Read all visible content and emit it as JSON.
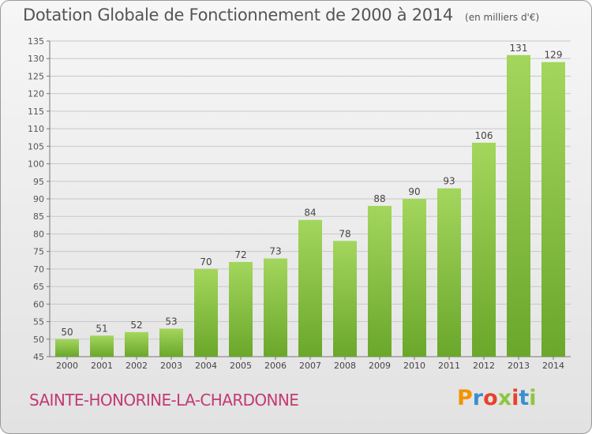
{
  "header": {
    "title": "Dotation Globale de Fonctionnement de 2000 à 2014",
    "unit_note": "(en milliers d'€)"
  },
  "footer": {
    "commune": "SAINTE-HONORINE-LA-CHARDONNE",
    "brand": "Proxiti"
  },
  "colors": {
    "bar_light": "#a3d65c",
    "bar_dark": "#6aa72a",
    "commune_text": "#c23a74",
    "grid": "#c8c8c8"
  },
  "chart_data": {
    "type": "bar",
    "title": "Dotation Globale de Fonctionnement de 2000 à 2014",
    "subtitle": "(en milliers d'€)",
    "categories": [
      "2000",
      "2001",
      "2002",
      "2003",
      "2004",
      "2005",
      "2006",
      "2007",
      "2008",
      "2009",
      "2010",
      "2011",
      "2012",
      "2013",
      "2014"
    ],
    "values": [
      50,
      51,
      52,
      53,
      70,
      72,
      73,
      84,
      78,
      88,
      90,
      93,
      106,
      131,
      129
    ],
    "ylim": [
      45,
      135
    ],
    "yticks": [
      45,
      50,
      55,
      60,
      65,
      70,
      75,
      80,
      85,
      90,
      95,
      100,
      105,
      110,
      115,
      120,
      125,
      130,
      135
    ],
    "grid": true,
    "data_labels": true
  }
}
